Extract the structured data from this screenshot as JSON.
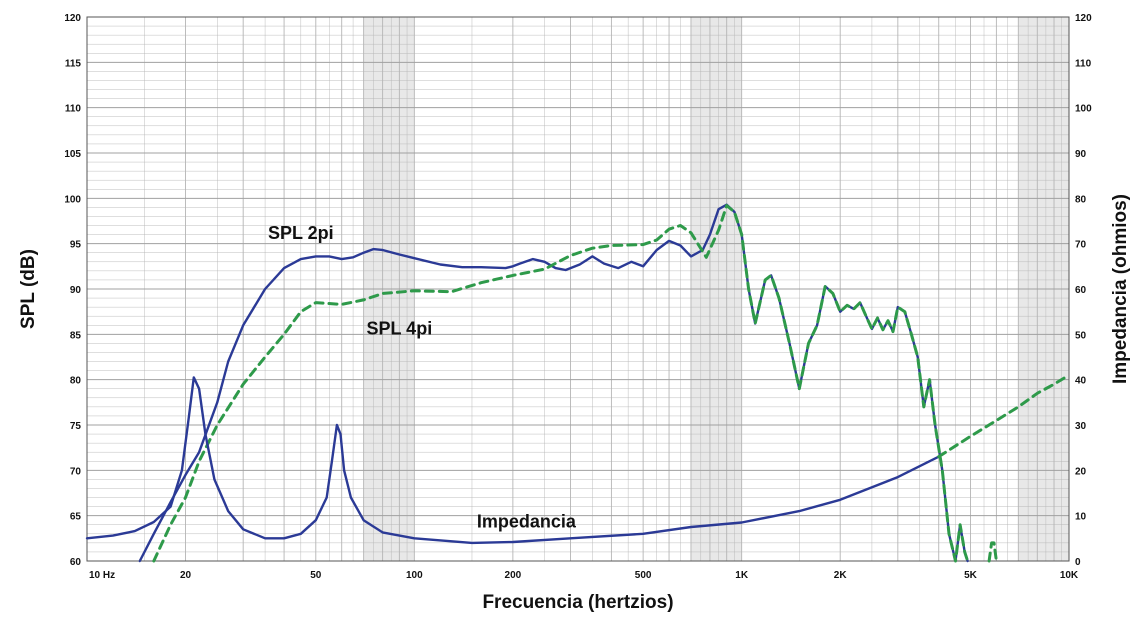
{
  "chart_data": {
    "type": "line",
    "title": "",
    "xlabel": "Frecuencia (hertzios)",
    "ylabel": "SPL (dB)",
    "y2label": "Impedancia (ohmios)",
    "x_scale": "log",
    "xlim": [
      10,
      10000
    ],
    "ylim": [
      60,
      120
    ],
    "y2lim": [
      0,
      120
    ],
    "grid": true,
    "x_ticks": [
      {
        "value": 10,
        "label": "10  Hz"
      },
      {
        "value": 20,
        "label": "20"
      },
      {
        "value": 50,
        "label": "50"
      },
      {
        "value": 100,
        "label": "100"
      },
      {
        "value": 200,
        "label": "200"
      },
      {
        "value": 500,
        "label": "500"
      },
      {
        "value": 1000,
        "label": "1K"
      },
      {
        "value": 2000,
        "label": "2K"
      },
      {
        "value": 5000,
        "label": "5K"
      },
      {
        "value": 10000,
        "label": "10K"
      }
    ],
    "y_ticks": [
      {
        "value": 60,
        "label": "60"
      },
      {
        "value": 65,
        "label": "65"
      },
      {
        "value": 70,
        "label": "70"
      },
      {
        "value": 75,
        "label": "75"
      },
      {
        "value": 80,
        "label": "80"
      },
      {
        "value": 85,
        "label": "85"
      },
      {
        "value": 90,
        "label": "90"
      },
      {
        "value": 95,
        "label": "95"
      },
      {
        "value": 100,
        "label": "100"
      },
      {
        "value": 105,
        "label": "105"
      },
      {
        "value": 110,
        "label": "110"
      },
      {
        "value": 115,
        "label": "115"
      },
      {
        "value": 120,
        "label": "120"
      }
    ],
    "y2_ticks": [
      {
        "value": 0,
        "label": "0"
      },
      {
        "value": 10,
        "label": "10"
      },
      {
        "value": 20,
        "label": "20"
      },
      {
        "value": 30,
        "label": "30"
      },
      {
        "value": 40,
        "label": "40"
      },
      {
        "value": 50,
        "label": "50"
      },
      {
        "value": 60,
        "label": "60"
      },
      {
        "value": 70,
        "label": "70"
      },
      {
        "value": 80,
        "label": "80"
      },
      {
        "value": 90,
        "label": "90"
      },
      {
        "value": 100,
        "label": "100"
      },
      {
        "value": 110,
        "label": "110"
      },
      {
        "value": 120,
        "label": "120"
      }
    ],
    "colors": {
      "spl2pi": "#2b3a96",
      "spl4pi": "#2e9a4a",
      "impedance": "#2b3a96",
      "grid": "#b5b5b5",
      "band": "#d6d6d6"
    },
    "series": [
      {
        "name": "SPL 2pi",
        "axis": "left",
        "style": "solid",
        "points": [
          [
            14.5,
            60
          ],
          [
            16,
            63
          ],
          [
            18,
            66.5
          ],
          [
            20,
            69.5
          ],
          [
            22,
            72
          ],
          [
            25,
            77.5
          ],
          [
            27,
            82
          ],
          [
            30,
            86
          ],
          [
            35,
            90
          ],
          [
            40,
            92.3
          ],
          [
            45,
            93.3
          ],
          [
            50,
            93.6
          ],
          [
            55,
            93.6
          ],
          [
            60,
            93.3
          ],
          [
            65,
            93.5
          ],
          [
            70,
            94
          ],
          [
            75,
            94.4
          ],
          [
            80,
            94.3
          ],
          [
            90,
            93.8
          ],
          [
            100,
            93.4
          ],
          [
            120,
            92.7
          ],
          [
            140,
            92.4
          ],
          [
            160,
            92.4
          ],
          [
            190,
            92.3
          ],
          [
            200,
            92.5
          ],
          [
            210,
            92.8
          ],
          [
            230,
            93.3
          ],
          [
            250,
            93
          ],
          [
            270,
            92.3
          ],
          [
            290,
            92.1
          ],
          [
            320,
            92.7
          ],
          [
            350,
            93.6
          ],
          [
            380,
            92.8
          ],
          [
            420,
            92.3
          ],
          [
            460,
            93
          ],
          [
            500,
            92.5
          ],
          [
            550,
            94.3
          ],
          [
            600,
            95.3
          ],
          [
            650,
            94.8
          ],
          [
            700,
            93.6
          ],
          [
            760,
            94.3
          ],
          [
            800,
            96
          ],
          [
            850,
            98.8
          ],
          [
            900,
            99.3
          ],
          [
            950,
            98.5
          ],
          [
            1000,
            96
          ],
          [
            1050,
            90
          ],
          [
            1100,
            86.2
          ],
          [
            1180,
            91
          ],
          [
            1230,
            91.5
          ],
          [
            1300,
            89
          ],
          [
            1400,
            84
          ],
          [
            1500,
            79
          ],
          [
            1600,
            84
          ],
          [
            1700,
            86
          ],
          [
            1800,
            90.3
          ],
          [
            1900,
            89.5
          ],
          [
            2000,
            87.5
          ],
          [
            2100,
            88.2
          ],
          [
            2200,
            87.8
          ],
          [
            2300,
            88.5
          ],
          [
            2400,
            87
          ],
          [
            2500,
            85.6
          ],
          [
            2600,
            86.8
          ],
          [
            2700,
            85.5
          ],
          [
            2800,
            86.5
          ],
          [
            2900,
            85.3
          ],
          [
            3000,
            88
          ],
          [
            3150,
            87.5
          ],
          [
            3300,
            85
          ],
          [
            3450,
            82.5
          ],
          [
            3600,
            77
          ],
          [
            3750,
            80
          ],
          [
            3900,
            75
          ],
          [
            4100,
            70
          ],
          [
            4300,
            63
          ],
          [
            4500,
            60
          ],
          [
            4650,
            64
          ],
          [
            4800,
            61
          ],
          [
            4900,
            60
          ]
        ]
      },
      {
        "name": "SPL 4pi",
        "axis": "left",
        "style": "dashed",
        "points": [
          [
            16,
            60
          ],
          [
            18,
            64
          ],
          [
            20,
            67
          ],
          [
            22,
            71
          ],
          [
            25,
            75
          ],
          [
            30,
            79.5
          ],
          [
            35,
            82.5
          ],
          [
            40,
            85
          ],
          [
            45,
            87.5
          ],
          [
            50,
            88.5
          ],
          [
            60,
            88.3
          ],
          [
            70,
            88.8
          ],
          [
            80,
            89.5
          ],
          [
            100,
            89.8
          ],
          [
            130,
            89.7
          ],
          [
            160,
            90.7
          ],
          [
            200,
            91.5
          ],
          [
            250,
            92.2
          ],
          [
            300,
            93.7
          ],
          [
            350,
            94.5
          ],
          [
            400,
            94.8
          ],
          [
            500,
            94.9
          ],
          [
            550,
            95.4
          ],
          [
            600,
            96.6
          ],
          [
            650,
            97
          ],
          [
            700,
            96.2
          ],
          [
            780,
            93.5
          ],
          [
            850,
            96.5
          ],
          [
            900,
            99.2
          ],
          [
            950,
            98.5
          ],
          [
            1000,
            96
          ],
          [
            1050,
            90
          ],
          [
            1100,
            86.2
          ],
          [
            1180,
            91
          ],
          [
            1230,
            91.5
          ],
          [
            1300,
            89
          ],
          [
            1400,
            84
          ],
          [
            1500,
            79
          ],
          [
            1600,
            84
          ],
          [
            1700,
            86
          ],
          [
            1800,
            90.3
          ],
          [
            1900,
            89.5
          ],
          [
            2000,
            87.5
          ],
          [
            2100,
            88.2
          ],
          [
            2200,
            87.8
          ],
          [
            2300,
            88.5
          ],
          [
            2400,
            87
          ],
          [
            2500,
            85.6
          ],
          [
            2600,
            86.8
          ],
          [
            2700,
            85.5
          ],
          [
            2800,
            86.5
          ],
          [
            2900,
            85.3
          ],
          [
            3000,
            88
          ],
          [
            3150,
            87.5
          ],
          [
            3300,
            85
          ],
          [
            3450,
            82.5
          ],
          [
            3600,
            77
          ],
          [
            3750,
            80
          ],
          [
            3900,
            75
          ],
          [
            4100,
            70
          ],
          [
            4300,
            63
          ],
          [
            4500,
            60
          ],
          [
            4650,
            64
          ],
          [
            4800,
            61
          ],
          [
            4900,
            60
          ],
          null,
          [
            5700,
            60
          ],
          [
            5800,
            62
          ],
          [
            5900,
            62
          ],
          [
            6000,
            60
          ]
        ]
      },
      {
        "name": "Impedancia",
        "axis": "right",
        "style": "solid",
        "points": [
          [
            10,
            5
          ],
          [
            12,
            5.6
          ],
          [
            14,
            6.6
          ],
          [
            16,
            8.6
          ],
          [
            18,
            12
          ],
          [
            19.5,
            20
          ],
          [
            20.5,
            32
          ],
          [
            21.2,
            40.5
          ],
          [
            22,
            38
          ],
          [
            23,
            28
          ],
          [
            24.5,
            18
          ],
          [
            27,
            11
          ],
          [
            30,
            7
          ],
          [
            35,
            5
          ],
          [
            40,
            5
          ],
          [
            45,
            6
          ],
          [
            50,
            9
          ],
          [
            54,
            14
          ],
          [
            56,
            22
          ],
          [
            58,
            30
          ],
          [
            59.5,
            28
          ],
          [
            61,
            20
          ],
          [
            64,
            14
          ],
          [
            70,
            9
          ],
          [
            80,
            6.3
          ],
          [
            100,
            5
          ],
          [
            150,
            4
          ],
          [
            200,
            4.2
          ],
          [
            300,
            5
          ],
          [
            500,
            6
          ],
          [
            700,
            7.5
          ],
          [
            1000,
            8.5
          ],
          [
            1500,
            11
          ],
          [
            2000,
            13.5
          ],
          [
            3000,
            18.5
          ],
          [
            4000,
            23
          ]
        ]
      },
      {
        "name": "Impedancia",
        "axis": "right",
        "style": "dashed",
        "points": [
          [
            4000,
            23
          ],
          [
            5000,
            27.5
          ],
          [
            6000,
            31
          ],
          [
            7000,
            34
          ],
          [
            8000,
            37
          ],
          [
            9000,
            39
          ],
          [
            10000,
            41
          ]
        ]
      }
    ],
    "annotations": [
      {
        "text": "SPL 2pi",
        "x": 45,
        "y": 95.5
      },
      {
        "text": "SPL 4pi",
        "x": 90,
        "y": 85
      },
      {
        "text": "Impedancia",
        "x": 220,
        "y": 63.7
      }
    ]
  }
}
